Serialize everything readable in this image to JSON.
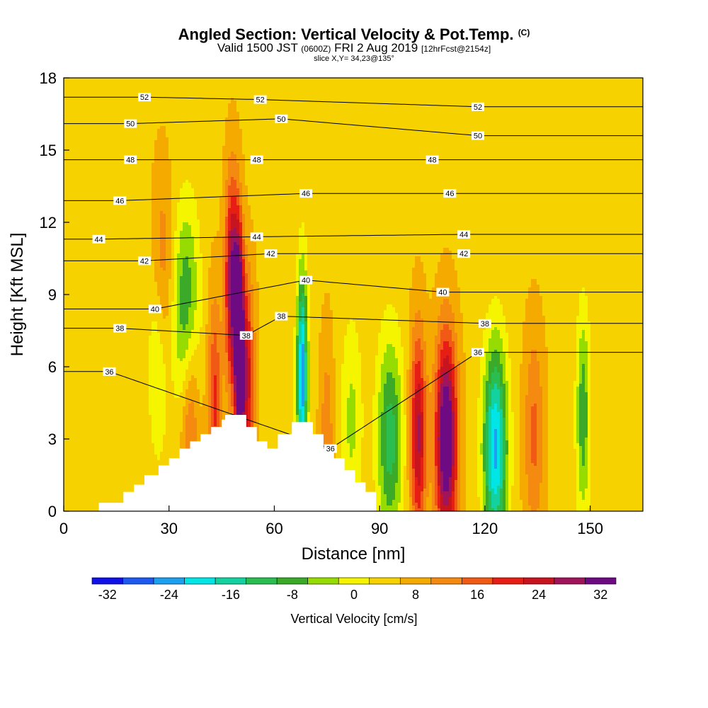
{
  "titles": {
    "main": "Angled Section: Vertical Velocity & Pot.Temp.",
    "main_units": "(C)",
    "valid_prefix": "Valid 1500 JST",
    "valid_utc": "(0600Z)",
    "valid_date": "FRI 2 Aug 2019",
    "valid_fcst": "[12hrFcst@2154z]",
    "slice": "slice X,Y= 34,23@135°"
  },
  "colors": {
    "palette": [
      "#1010e8",
      "#1e5af0",
      "#1ea0f0",
      "#00e6e6",
      "#14d2a0",
      "#2abe50",
      "#3aaa28",
      "#96dc00",
      "#f5f500",
      "#f5d200",
      "#f5aa00",
      "#f58a10",
      "#f05a14",
      "#e61e14",
      "#c8141e",
      "#a0145a",
      "#6e0a82"
    ],
    "terrain": "#ffffff",
    "contour": "#000000"
  },
  "chart_data": {
    "type": "heatmap",
    "title": "Angled Section: Vertical Velocity & Pot.Temp.",
    "xlabel": "Distance [nm]",
    "ylabel": "Height [Kft MSL]",
    "xlim": [
      0,
      165
    ],
    "ylim": [
      0,
      18
    ],
    "x_ticks": [
      "0",
      "30",
      "60",
      "90",
      "120",
      "150"
    ],
    "x_tick_values": [
      0,
      30,
      60,
      90,
      120,
      150
    ],
    "y_ticks": [
      "0",
      "3",
      "6",
      "9",
      "12",
      "15",
      "18"
    ],
    "y_tick_values": [
      0,
      3,
      6,
      9,
      12,
      15,
      18
    ],
    "colorbar": {
      "label": "Vertical Velocity [cm/s]",
      "ticks": [
        "-32",
        "-24",
        "-16",
        "-8",
        "0",
        "8",
        "16",
        "24",
        "32"
      ],
      "tick_values": [
        -32,
        -24,
        -16,
        -8,
        0,
        8,
        16,
        24,
        32
      ],
      "levels": [
        -34,
        -30,
        -26,
        -22,
        -18,
        -14,
        -10,
        -6,
        -2,
        2,
        6,
        10,
        14,
        18,
        22,
        26,
        30,
        34
      ]
    },
    "theta_contours": [
      {
        "label": "52",
        "x": 23,
        "h": 17.2
      },
      {
        "label": "52",
        "x": 56,
        "h": 17.1
      },
      {
        "label": "52",
        "x": 118,
        "h": 16.8
      },
      {
        "label": "50",
        "x": 19,
        "h": 16.1
      },
      {
        "label": "50",
        "x": 62,
        "h": 16.3
      },
      {
        "label": "50",
        "x": 118,
        "h": 15.6
      },
      {
        "label": "48",
        "x": 19,
        "h": 14.6
      },
      {
        "label": "48",
        "x": 55,
        "h": 14.6
      },
      {
        "label": "48",
        "x": 105,
        "h": 14.6
      },
      {
        "label": "46",
        "x": 16,
        "h": 12.9
      },
      {
        "label": "46",
        "x": 69,
        "h": 13.2
      },
      {
        "label": "46",
        "x": 110,
        "h": 13.2
      },
      {
        "label": "44",
        "x": 10,
        "h": 11.3
      },
      {
        "label": "44",
        "x": 55,
        "h": 11.4
      },
      {
        "label": "44",
        "x": 114,
        "h": 11.5
      },
      {
        "label": "42",
        "x": 23,
        "h": 10.4
      },
      {
        "label": "42",
        "x": 59,
        "h": 10.7
      },
      {
        "label": "42",
        "x": 114,
        "h": 10.7
      },
      {
        "label": "40",
        "x": 26,
        "h": 8.4
      },
      {
        "label": "40",
        "x": 69,
        "h": 9.6
      },
      {
        "label": "40",
        "x": 108,
        "h": 9.1
      },
      {
        "label": "38",
        "x": 16,
        "h": 7.6
      },
      {
        "label": "38",
        "x": 62,
        "h": 8.1
      },
      {
        "label": "38",
        "x": 120,
        "h": 7.8
      },
      {
        "label": "38",
        "x": 52,
        "h": 7.3
      },
      {
        "label": "36",
        "x": 13,
        "h": 5.8
      },
      {
        "label": "36",
        "x": 118,
        "h": 6.6
      },
      {
        "label": "36",
        "x": 76,
        "h": 2.6
      }
    ],
    "terrain_profile": [
      [
        10,
        0.6
      ],
      [
        10,
        0.35
      ],
      [
        17,
        0.35
      ],
      [
        17,
        0.8
      ],
      [
        20,
        0.8
      ],
      [
        20,
        1.1
      ],
      [
        23,
        1.1
      ],
      [
        23,
        1.5
      ],
      [
        27,
        1.5
      ],
      [
        27,
        1.9
      ],
      [
        30,
        1.9
      ],
      [
        30,
        2.2
      ],
      [
        33,
        2.2
      ],
      [
        33,
        2.6
      ],
      [
        36,
        2.6
      ],
      [
        36,
        2.9
      ],
      [
        39,
        2.9
      ],
      [
        39,
        3.2
      ],
      [
        42,
        3.2
      ],
      [
        42,
        3.5
      ],
      [
        45,
        3.5
      ],
      [
        45,
        3.8
      ],
      [
        46,
        3.8
      ],
      [
        46,
        4.0
      ],
      [
        52,
        4.0
      ],
      [
        52,
        3.5
      ],
      [
        55,
        3.5
      ],
      [
        55,
        2.9
      ],
      [
        58,
        2.9
      ],
      [
        58,
        2.6
      ],
      [
        61,
        2.6
      ],
      [
        61,
        3.2
      ],
      [
        65,
        3.2
      ],
      [
        65,
        3.7
      ],
      [
        71,
        3.7
      ],
      [
        71,
        3.2
      ],
      [
        74,
        3.2
      ],
      [
        74,
        2.6
      ],
      [
        77,
        2.6
      ],
      [
        77,
        2.2
      ],
      [
        80,
        2.2
      ],
      [
        80,
        1.7
      ],
      [
        83,
        1.7
      ],
      [
        83,
        1.2
      ],
      [
        86,
        1.2
      ],
      [
        86,
        0.8
      ],
      [
        89,
        0.8
      ],
      [
        89,
        0.35
      ]
    ],
    "velocity_features": [
      {
        "x": 50,
        "h": 7.0,
        "w": 0.9,
        "v": 34
      },
      {
        "x": 48,
        "h": 9.5,
        "w": 1.4,
        "v": 26
      },
      {
        "x": 52,
        "h": 5.5,
        "w": 1.6,
        "v": 20
      },
      {
        "x": 109,
        "h": 3.0,
        "w": 2.2,
        "v": 33
      },
      {
        "x": 101,
        "h": 3.2,
        "w": 1.6,
        "v": 22
      },
      {
        "x": 93,
        "h": 3.0,
        "w": 2.6,
        "v": -17
      },
      {
        "x": 123,
        "h": 2.6,
        "w": 2.4,
        "v": -28
      },
      {
        "x": 68,
        "h": 5.6,
        "w": 1.1,
        "v": -30
      },
      {
        "x": 35,
        "h": 8.3,
        "w": 2.6,
        "v": -16
      },
      {
        "x": 27,
        "h": 6.6,
        "w": 2.0,
        "v": -10
      },
      {
        "x": 28,
        "h": 9.7,
        "w": 2.0,
        "v": 10
      },
      {
        "x": 36,
        "h": 4.0,
        "w": 1.8,
        "v": 12
      },
      {
        "x": 43,
        "h": 4.6,
        "w": 1.4,
        "v": 14
      },
      {
        "x": 148,
        "h": 4.0,
        "w": 1.4,
        "v": -14
      },
      {
        "x": 134,
        "h": 3.2,
        "w": 2.0,
        "v": 10
      },
      {
        "x": 82,
        "h": 3.8,
        "w": 2.2,
        "v": -8
      },
      {
        "x": 75,
        "h": 3.0,
        "w": 1.4,
        "v": 8
      }
    ]
  }
}
